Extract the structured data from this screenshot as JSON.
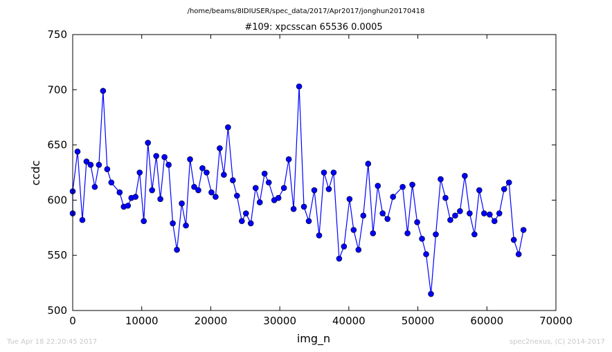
{
  "header": {
    "path": "/home/beams/8IDIUSER/spec_data/2017/Apr2017/jonghun20170418"
  },
  "footer": {
    "timestamp": "Tue Apr 18 22:20:45 2017",
    "credit": "spec2nexus, (C) 2014-2017"
  },
  "chart_data": {
    "type": "line",
    "title": "#109: xpcsscan 65536 0.0005",
    "xlabel": "img_n",
    "ylabel": "ccdc",
    "xlim": [
      0,
      70000
    ],
    "ylim": [
      500,
      750
    ],
    "xticks": [
      0,
      10000,
      20000,
      30000,
      40000,
      50000,
      60000,
      70000
    ],
    "xtick_labels": [
      "0",
      "10000",
      "20000",
      "30000",
      "40000",
      "50000",
      "60000",
      "70000"
    ],
    "yticks": [
      500,
      550,
      600,
      650,
      700,
      750
    ],
    "ytick_labels": [
      "500",
      "550",
      "600",
      "650",
      "700",
      "750"
    ],
    "grid": false,
    "series": [
      {
        "color": "#0000ff",
        "marker": "circle",
        "x": [
          0,
          0,
          700,
          1400,
          2000,
          2600,
          3200,
          3800,
          4400,
          5000,
          5600,
          6800,
          7400,
          8000,
          8500,
          9100,
          9700,
          10300,
          10900,
          11500,
          12100,
          12700,
          13300,
          13900,
          14500,
          15100,
          15800,
          16400,
          17000,
          17600,
          18200,
          18800,
          19400,
          20100,
          20700,
          21300,
          21900,
          22500,
          23200,
          23800,
          24500,
          25100,
          25800,
          26500,
          27100,
          27800,
          28400,
          29200,
          29800,
          30600,
          31300,
          32000,
          32800,
          33500,
          34200,
          35000,
          35700,
          36400,
          37100,
          37800,
          38600,
          39300,
          40100,
          40700,
          41400,
          42100,
          42800,
          43500,
          44200,
          44900,
          45600,
          46400,
          47800,
          48500,
          49200,
          49900,
          50600,
          51200,
          51900,
          52600,
          53300,
          54000,
          54700,
          55400,
          56100,
          56800,
          57500,
          58200,
          58900,
          59600,
          60400,
          61100,
          61800,
          62500,
          63200,
          63900,
          64600,
          65300
        ],
        "y": [
          588,
          608,
          644,
          582,
          635,
          632,
          612,
          632,
          699,
          628,
          616,
          607,
          594,
          595,
          602,
          603,
          625,
          581,
          652,
          609,
          640,
          601,
          639,
          632,
          579,
          555,
          597,
          577,
          637,
          612,
          609,
          629,
          625,
          607,
          603,
          647,
          623,
          666,
          618,
          604,
          581,
          588,
          579,
          611,
          598,
          624,
          616,
          600,
          602,
          611,
          637,
          592,
          703,
          594,
          581,
          609,
          568,
          625,
          610,
          625,
          547,
          558,
          601,
          573,
          555,
          586,
          633,
          570,
          613,
          588,
          583,
          603,
          612,
          570,
          614,
          580,
          565,
          551,
          515,
          569,
          619,
          602,
          582,
          586,
          590,
          622,
          588,
          569,
          609,
          588,
          587,
          581,
          588,
          610,
          616,
          564,
          551,
          573
        ]
      }
    ]
  }
}
